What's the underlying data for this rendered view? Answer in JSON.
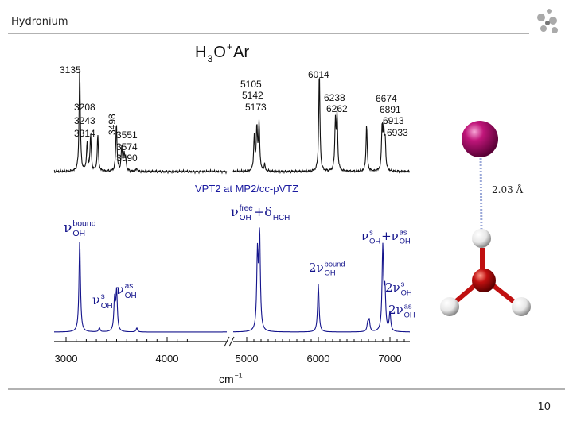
{
  "header": {
    "title": "Hydronium"
  },
  "figure": {
    "title": [
      {
        "t": "H",
        "sub": "3"
      },
      {
        "t": "O",
        "sup": "+"
      },
      {
        "t": " Ar"
      }
    ],
    "experiment_left_labels": [
      "3135",
      "3208",
      "3243",
      "3314",
      "3498",
      "3551",
      "3574",
      "3590"
    ],
    "experiment_right_labels": [
      "5105",
      "5142",
      "5173",
      "6014",
      "6238",
      "6262",
      "6674",
      "6891",
      "6913",
      "6933"
    ],
    "method": "VPT2 at MP2/cc-pVTZ",
    "assignments": [
      [
        {
          "t": "ν",
          "sup": "bound",
          "sub": "OH"
        }
      ],
      [
        {
          "t": "ν",
          "sup": "free",
          "sub": "OH"
        },
        {
          "t": "+δ",
          "sub": "HCH"
        }
      ],
      [
        {
          "t": "ν",
          "sup": "s",
          "sub": "OH"
        }
      ],
      [
        {
          "t": "ν",
          "sup": "as",
          "sub": "OH"
        }
      ],
      [
        {
          "t": "2ν",
          "sup": "bound",
          "sub": "OH"
        }
      ],
      [
        {
          "t": "ν",
          "sup": "s",
          "sub": "OH"
        },
        {
          "t": "+ν",
          "sup": "as",
          "sub": "OH"
        }
      ],
      [
        {
          "t": "2ν",
          "sup": "s",
          "sub": "OH"
        }
      ],
      [
        {
          "t": "2ν",
          "sup": "as",
          "sub": "OH"
        }
      ]
    ],
    "axis_ticks": [
      "3000",
      "4000",
      "5000",
      "6000",
      "7000"
    ],
    "axis_label": [
      {
        "t": "cm",
        "sup": "−1"
      }
    ],
    "bond_length": "2.03 Å"
  },
  "footer": {
    "page_number": "10"
  }
}
